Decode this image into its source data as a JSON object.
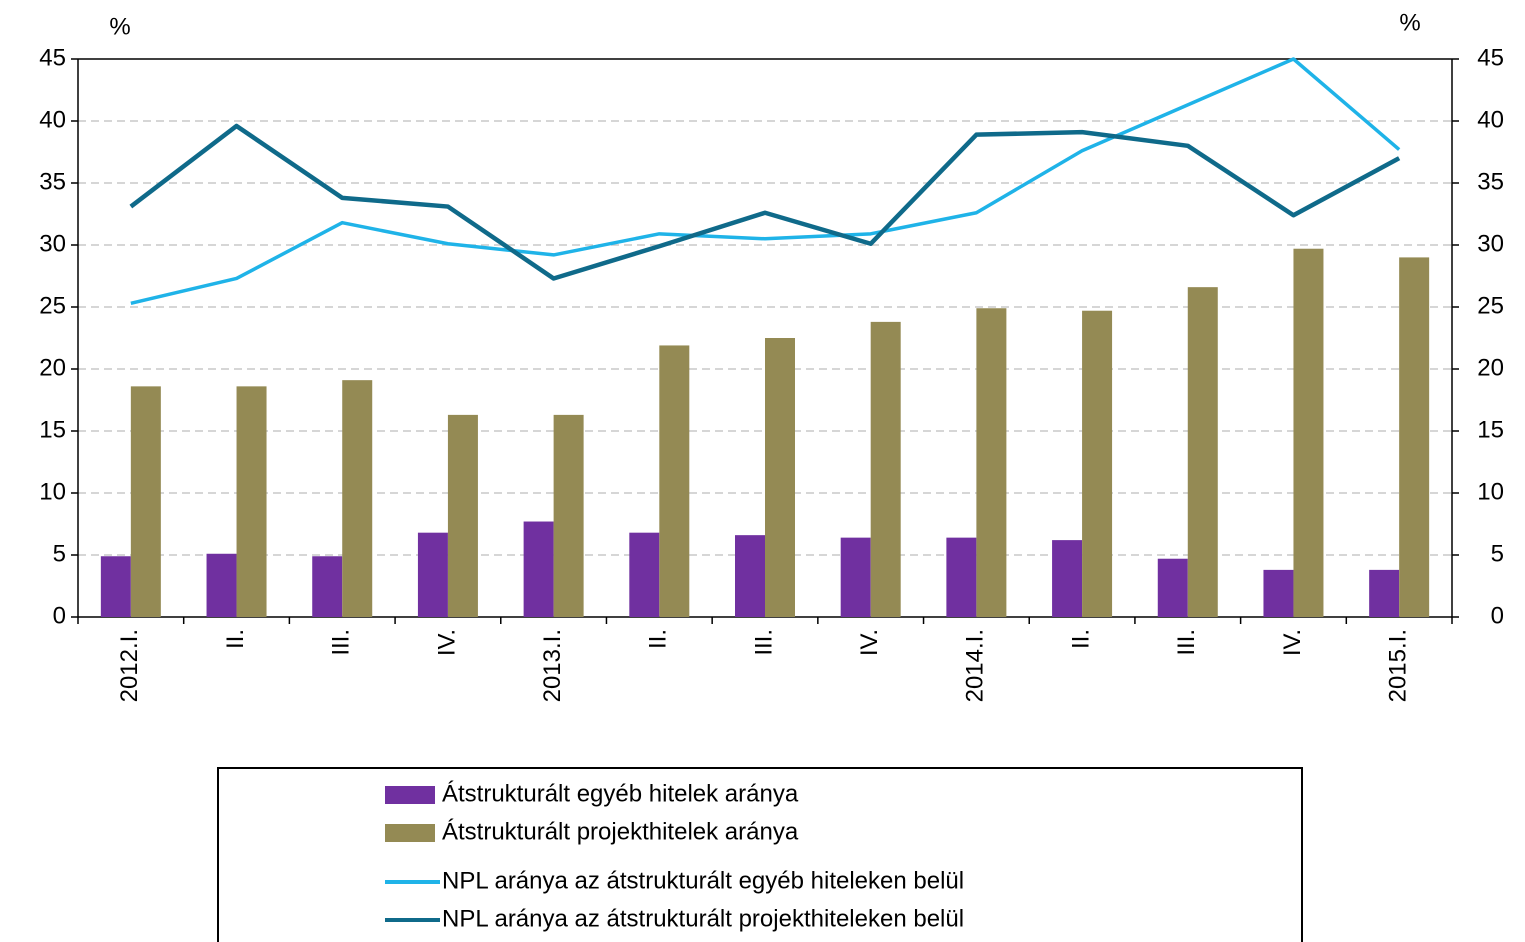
{
  "chart_data": {
    "type": "bar",
    "y_unit_left": "%",
    "y_unit_right": "%",
    "categories": [
      "2012.I.",
      "II.",
      "III.",
      "IV.",
      "2013.I.",
      "II.",
      "III.",
      "IV.",
      "2014.I.",
      "II.",
      "III.",
      "IV.",
      "2015.I."
    ],
    "series": [
      {
        "name": "Átstrukturált egyéb hitelek aránya",
        "type": "bar",
        "color": "#7030a0",
        "values": [
          4.9,
          5.1,
          4.9,
          6.8,
          7.7,
          6.8,
          6.6,
          6.4,
          6.4,
          6.2,
          4.7,
          3.8,
          3.8
        ]
      },
      {
        "name": "Átstrukturált projekthitelek aránya",
        "type": "bar",
        "color": "#948a54",
        "values": [
          18.6,
          18.6,
          19.1,
          16.3,
          16.3,
          21.9,
          22.5,
          23.8,
          24.9,
          24.7,
          26.6,
          29.7,
          29.0
        ]
      },
      {
        "name": "NPL aránya az átstrukturált egyéb hiteleken belül",
        "type": "line",
        "axis": "y2",
        "color": "#1fb3e8",
        "values": [
          25.3,
          27.3,
          31.8,
          30.1,
          29.2,
          30.9,
          30.5,
          30.9,
          32.6,
          37.6,
          41.3,
          45.0,
          37.7
        ]
      },
      {
        "name": "NPL aránya az átstrukturált projekthiteleken belül",
        "type": "line",
        "axis": "y2",
        "color": "#0f6a8a",
        "values": [
          33.1,
          39.6,
          33.8,
          33.1,
          27.3,
          29.9,
          32.6,
          30.1,
          38.9,
          39.1,
          38.0,
          32.4,
          37.0
        ]
      }
    ],
    "ylim": [
      0,
      45
    ],
    "yticks": [
      0,
      5,
      10,
      15,
      20,
      25,
      30,
      35,
      40,
      45
    ],
    "y2lim": [
      0,
      45
    ],
    "y2ticks": [
      0,
      5,
      10,
      15,
      20,
      25,
      30,
      35,
      40,
      45
    ],
    "grid": true,
    "legend": "bottom"
  }
}
